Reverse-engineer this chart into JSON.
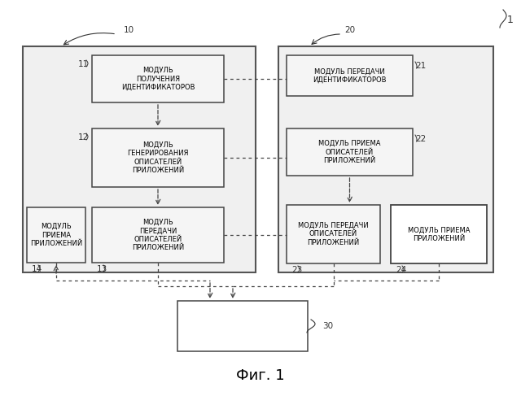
{
  "fig_width": 6.4,
  "fig_height": 4.87,
  "bg_color": "#ffffff",
  "title": "Фиг. 1",
  "label_10": "10",
  "label_20": "20",
  "label_1": "1",
  "label_30": "30",
  "box11_label": "МОДУЛЬ\nПОЛУЧЕНИЯ\nИДЕНТИФИКАТОРОВ",
  "box11_num": "11",
  "box12_label": "МОДУЛЬ\nГЕНЕРИРОВАНИЯ\nОПИСАТЕЛЕЙ\nПРИЛОЖЕНИЙ",
  "box12_num": "12",
  "box13_label": "МОДУЛЬ\nПЕРЕДАЧИ\nОПИСАТЕЛЕЙ\nПРИЛОЖЕНИЙ",
  "box13_num": "13",
  "box14_label": "МОДУЛЬ\nПРИЕМА\nПРИЛОЖЕНИЙ",
  "box14_num": "14",
  "box21_label": "МОДУЛЬ ПЕРЕДАЧИ\nИДЕНТИФИКАТОРОВ",
  "box21_num": "21",
  "box22_label": "МОДУЛЬ ПРИЕМА\nОПИСАТЕЛЕЙ\nПРИЛОЖЕНИЙ",
  "box22_num": "22",
  "box23_label": "МОДУЛЬ ПЕРЕДАЧИ\nОПИСАТЕЛЕЙ\nПРИЛОЖЕНИЙ",
  "box23_num": "23",
  "box24_label": "МОДУЛЬ ПРИЕМА\nПРИЛОЖЕНИЙ",
  "box24_num": "24"
}
